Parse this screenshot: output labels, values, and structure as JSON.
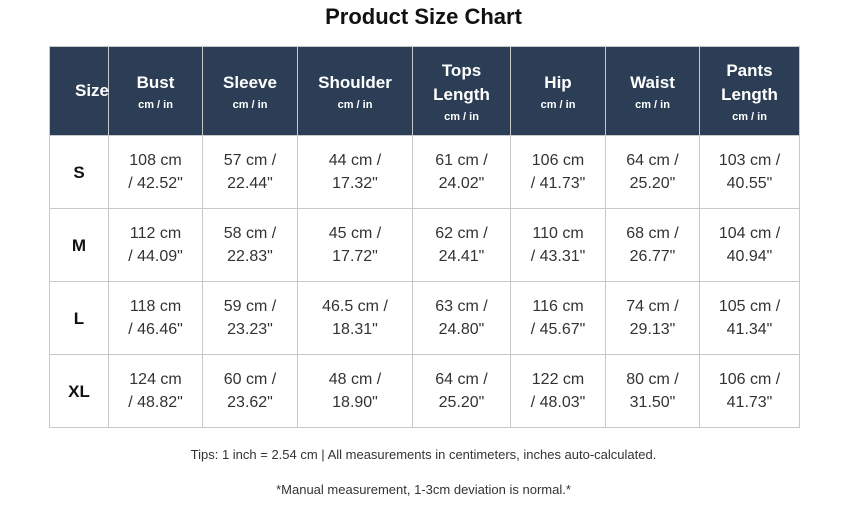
{
  "header": {
    "title": "Product Size Chart"
  },
  "table": {
    "columns": [
      {
        "name": "Size"
      },
      {
        "name": "Bust",
        "unit": "cm / in"
      },
      {
        "name": "Sleeve",
        "unit": "cm / in"
      },
      {
        "name": "Shoulder",
        "unit": "cm / in"
      },
      {
        "name": "Tops Length",
        "unit": "cm / in"
      },
      {
        "name": "Hip",
        "unit": "cm / in"
      },
      {
        "name": "Waist",
        "unit": "cm / in"
      },
      {
        "name": "Pants Length",
        "unit": "cm / in"
      }
    ],
    "rows": [
      [
        "S",
        "108 cm / 42.52\"",
        "57 cm / 22.44\"",
        "44 cm / 17.32\"",
        "61 cm / 24.02\"",
        "106 cm / 41.73\"",
        "64 cm / 25.20\"",
        "103 cm / 40.55\""
      ],
      [
        "M",
        "112 cm / 44.09\"",
        "58 cm / 22.83\"",
        "45 cm / 17.72\"",
        "62 cm / 24.41\"",
        "110 cm / 43.31\"",
        "68 cm / 26.77\"",
        "104 cm / 40.94\""
      ],
      [
        "L",
        "118 cm / 46.46\"",
        "59 cm / 23.23\"",
        "46.5 cm / 18.31\"",
        "63 cm / 24.80\"",
        "116 cm / 45.67\"",
        "74 cm / 29.13\"",
        "105 cm / 41.34\""
      ],
      [
        "XL",
        "124 cm / 48.82\"",
        "60 cm / 23.62\"",
        "48 cm / 18.90\"",
        "64 cm / 25.20\"",
        "122 cm / 48.03\"",
        "80 cm / 31.50\"",
        "106 cm / 41.73\""
      ]
    ]
  },
  "footer": {
    "tips": "Tips: 1 inch = 2.54 cm | All measurements in centimeters, inches auto-calculated.",
    "note": "*Manual measurement, 1-3cm deviation is normal.*"
  }
}
